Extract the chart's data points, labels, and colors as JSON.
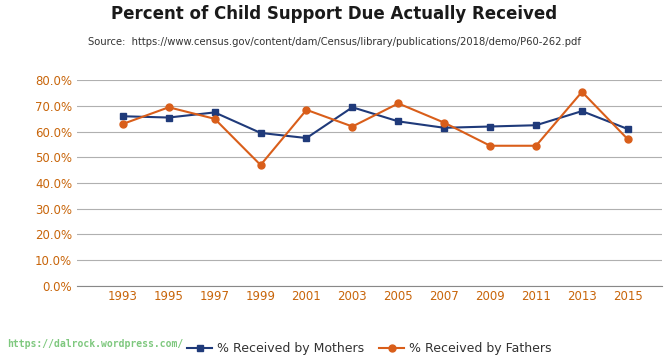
{
  "title": "Percent of Child Support Due Actually Received",
  "source": "Source:  https://www.census.gov/content/dam/Census/library/publications/2018/demo/P60-262.pdf",
  "years": [
    1993,
    1995,
    1997,
    1999,
    2001,
    2003,
    2005,
    2007,
    2009,
    2011,
    2013,
    2015
  ],
  "mothers": [
    0.66,
    0.655,
    0.675,
    0.595,
    0.575,
    0.695,
    0.64,
    0.615,
    0.62,
    0.625,
    0.68,
    0.61
  ],
  "fathers": [
    0.63,
    0.695,
    0.65,
    0.47,
    0.685,
    0.62,
    0.71,
    0.635,
    0.545,
    0.545,
    0.755,
    0.57
  ],
  "mothers_color": "#1F3A7A",
  "fathers_color": "#D95E1A",
  "tick_color": "#C8650A",
  "mothers_label": "% Received by Mothers",
  "fathers_label": "% Received by Fathers",
  "ylim": [
    0.0,
    0.8
  ],
  "yticks": [
    0.0,
    0.1,
    0.2,
    0.3,
    0.4,
    0.5,
    0.6,
    0.7,
    0.8
  ],
  "background_color": "#ffffff",
  "grid_color": "#b0b0b0",
  "footer_bg": "#4a6b40",
  "footer_text": "https://dalrock.wordpress.com/",
  "footer_text_color": "#7ec87e",
  "title_color": "#1a1a1a",
  "source_color": "#333333"
}
